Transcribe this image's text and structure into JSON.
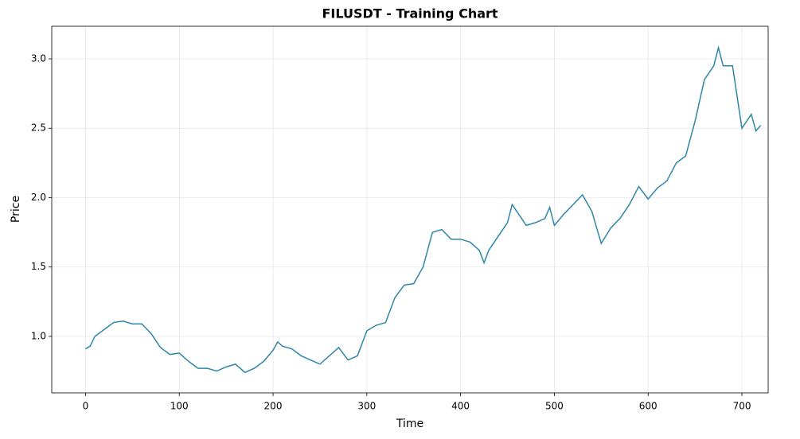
{
  "chart_data": {
    "type": "line",
    "title": "FILUSDT - Training Chart",
    "x_label": "Time",
    "y_label": "Price",
    "x": [
      0,
      5,
      10,
      20,
      30,
      40,
      50,
      60,
      70,
      80,
      90,
      100,
      110,
      120,
      130,
      140,
      150,
      160,
      170,
      180,
      190,
      200,
      205,
      210,
      220,
      230,
      240,
      250,
      260,
      270,
      280,
      290,
      300,
      310,
      320,
      330,
      340,
      350,
      360,
      370,
      380,
      390,
      400,
      410,
      420,
      425,
      430,
      440,
      450,
      455,
      460,
      470,
      480,
      490,
      495,
      500,
      510,
      520,
      530,
      540,
      550,
      560,
      570,
      580,
      590,
      600,
      610,
      620,
      630,
      640,
      650,
      660,
      670,
      675,
      680,
      690,
      700,
      710,
      715,
      720
    ],
    "series": [
      {
        "name": "Price",
        "color": "#2e86ab",
        "values": [
          0.91,
          0.93,
          1.0,
          1.05,
          1.1,
          1.11,
          1.09,
          1.09,
          1.02,
          0.92,
          0.87,
          0.88,
          0.82,
          0.77,
          0.77,
          0.75,
          0.78,
          0.8,
          0.74,
          0.77,
          0.82,
          0.9,
          0.96,
          0.93,
          0.91,
          0.86,
          0.83,
          0.8,
          0.86,
          0.92,
          0.83,
          0.86,
          1.04,
          1.08,
          1.1,
          1.28,
          1.37,
          1.38,
          1.5,
          1.75,
          1.77,
          1.7,
          1.7,
          1.68,
          1.62,
          1.53,
          1.62,
          1.72,
          1.82,
          1.95,
          1.9,
          1.8,
          1.82,
          1.85,
          1.93,
          1.8,
          1.88,
          1.95,
          2.02,
          1.9,
          1.67,
          1.78,
          1.85,
          1.95,
          2.08,
          1.99,
          2.07,
          2.12,
          2.25,
          2.3,
          2.55,
          2.85,
          2.95,
          3.08,
          2.95,
          2.95,
          2.5,
          2.6,
          2.48,
          2.52
        ]
      }
    ],
    "xlim": [
      -36,
      728
    ],
    "ylim": [
      0.593,
      3.235
    ],
    "xticks": [
      0,
      100,
      200,
      300,
      400,
      500,
      600,
      700
    ],
    "yticks": [
      {
        "value": 1,
        "label": "1.0"
      },
      {
        "value": 1.5,
        "label": "1.5"
      },
      {
        "value": 2,
        "label": "2.0"
      },
      {
        "value": 2.5,
        "label": "2.5"
      },
      {
        "value": 3,
        "label": "3.0"
      }
    ],
    "grid": true
  }
}
